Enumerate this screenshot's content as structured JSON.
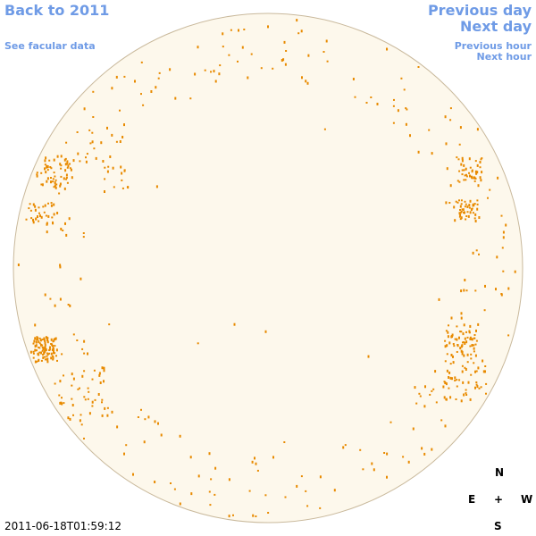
{
  "nav": {
    "back_year": "Back to 2011",
    "facular": "See facular data",
    "prev_day": "Previous day",
    "next_day": "Next day",
    "prev_hour": "Previous hour",
    "next_hour": "Next hour"
  },
  "timestamp": "2011-06-18T01:59:12",
  "compass": {
    "north": "N",
    "east": "E",
    "center": "+",
    "west": "W",
    "south": "S"
  }
}
